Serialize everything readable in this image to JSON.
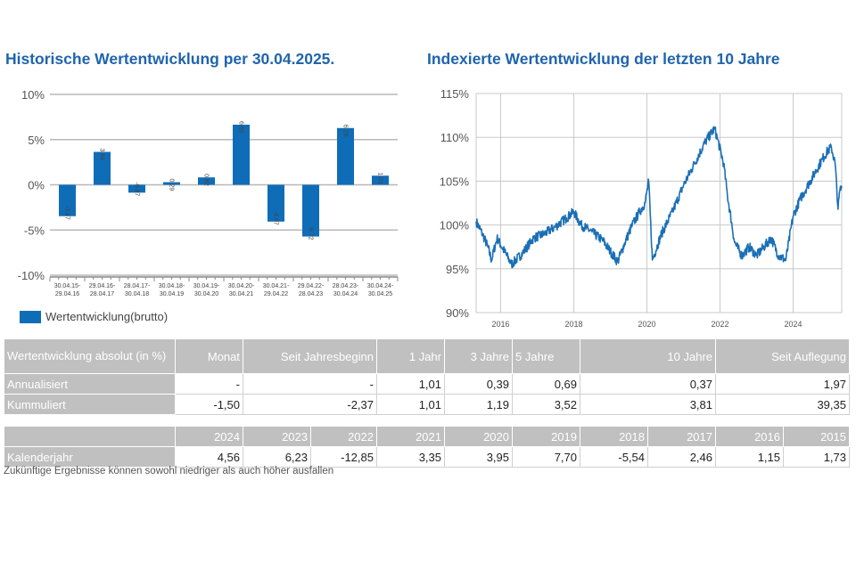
{
  "titles": {
    "left": "Historische Wertentwicklung per 30.04.2025.",
    "right": "Indexierte Wertentwicklung der letzten 10 Jahre"
  },
  "colors": {
    "accent": "#1f64ad",
    "bar": "#0f6db8",
    "line": "#1a6fb5",
    "header_bg": "#c0c0c0"
  },
  "chart_data": [
    {
      "type": "bar",
      "categories": [
        [
          "30.04.15-",
          "29.04.16"
        ],
        [
          "29.04.16-",
          "28.04.17"
        ],
        [
          "28.04.17-",
          "30.04.18"
        ],
        [
          "30.04.18-",
          "30.04.19"
        ],
        [
          "30.04.19-",
          "30.04.20"
        ],
        [
          "30.04.20-",
          "30.04.21"
        ],
        [
          "30.04.21-",
          "29.04.22"
        ],
        [
          "29.04.22-",
          "28.04.23"
        ],
        [
          "28.04.23-",
          "30.04.24"
        ],
        [
          "30.04.24-",
          "30.04.25"
        ]
      ],
      "values": [
        -3.47,
        3.64,
        -0.87,
        0.29,
        0.82,
        6.65,
        -4.07,
        -5.72,
        6.28,
        1.01
      ],
      "value_labels": [
        "-3.47",
        "3.64",
        "-0.87",
        "0.29",
        "0.82",
        "6.65",
        "-4.07",
        "-5.72",
        "6.28",
        "1.01"
      ],
      "ylim": [
        -10,
        10
      ],
      "yticks": [
        10,
        5,
        0,
        -5,
        -10
      ],
      "ytick_labels": [
        "10%",
        "5%",
        "0%",
        "-5%",
        "-10%"
      ],
      "grid": true,
      "legend": "Wertentwicklung(brutto)",
      "legend_position": "bottom-left"
    },
    {
      "type": "line",
      "xlim": [
        2015.33,
        2025.33
      ],
      "ylim": [
        90,
        115
      ],
      "yticks": [
        115,
        110,
        105,
        100,
        95,
        90
      ],
      "ytick_labels": [
        "115%",
        "110%",
        "105%",
        "100%",
        "95%",
        "90%"
      ],
      "xticks": [
        2016,
        2018,
        2020,
        2022,
        2024
      ],
      "xtick_labels": [
        "2016",
        "2018",
        "2020",
        "2022",
        "2024"
      ],
      "grid": true,
      "x": [
        2015.33,
        2015.5,
        2015.65,
        2015.75,
        2015.9,
        2016.1,
        2016.3,
        2016.6,
        2016.9,
        2017.2,
        2017.5,
        2017.8,
        2018.0,
        2018.2,
        2018.5,
        2018.8,
        2019.0,
        2019.2,
        2019.4,
        2019.6,
        2019.8,
        2019.95,
        2020.05,
        2020.15,
        2020.4,
        2020.7,
        2021.0,
        2021.3,
        2021.6,
        2021.85,
        2021.92,
        2022.1,
        2022.2,
        2022.4,
        2022.6,
        2022.8,
        2023.0,
        2023.2,
        2023.4,
        2023.6,
        2023.8,
        2024.0,
        2024.2,
        2024.4,
        2024.6,
        2024.8,
        2024.95,
        2025.05,
        2025.15,
        2025.23,
        2025.28,
        2025.33
      ],
      "y": [
        100.4,
        99.0,
        97.5,
        96.0,
        98.5,
        97.0,
        95.5,
        96.8,
        98.5,
        99.0,
        99.8,
        100.8,
        101.5,
        100.0,
        99.2,
        98.2,
        97.0,
        95.8,
        98.0,
        100.0,
        101.5,
        102.5,
        105.0,
        96.0,
        99.0,
        101.5,
        104.5,
        107.0,
        109.5,
        111.0,
        110.0,
        107.0,
        103.5,
        98.0,
        96.5,
        97.5,
        96.5,
        97.5,
        98.5,
        96.5,
        96.0,
        101.0,
        103.0,
        104.5,
        106.0,
        107.5,
        108.5,
        108.8,
        107.0,
        101.8,
        104.0,
        104.2
      ]
    }
  ],
  "table1": {
    "header": [
      "Wertentwicklung absolut (in %)",
      "Monat",
      "Seit Jahresbeginn",
      "1 Jahr",
      "3 Jahre",
      "5 Jahre",
      "10 Jahre",
      "Seit Auflegung"
    ],
    "rows": [
      {
        "label": "Annualisiert",
        "cells": [
          "-",
          "-",
          "1,01",
          "0,39",
          "0,69",
          "0,37",
          "1,97"
        ]
      },
      {
        "label": "Kummuliert",
        "cells": [
          "-1,50",
          "-2,37",
          "1,01",
          "1,19",
          "3,52",
          "3,81",
          "39,35"
        ]
      }
    ]
  },
  "table2": {
    "years": [
      "2024",
      "2023",
      "2022",
      "2021",
      "2020",
      "2019",
      "2018",
      "2017",
      "2016",
      "2015"
    ],
    "label": "Kalenderjahr",
    "values": [
      "4,56",
      "6,23",
      "-12,85",
      "3,35",
      "3,95",
      "7,70",
      "-5,54",
      "2,46",
      "1,15",
      "1,73"
    ]
  },
  "footnote": "Zukünftige Ergebnisse können sowohl niedriger als auch höher ausfallen"
}
